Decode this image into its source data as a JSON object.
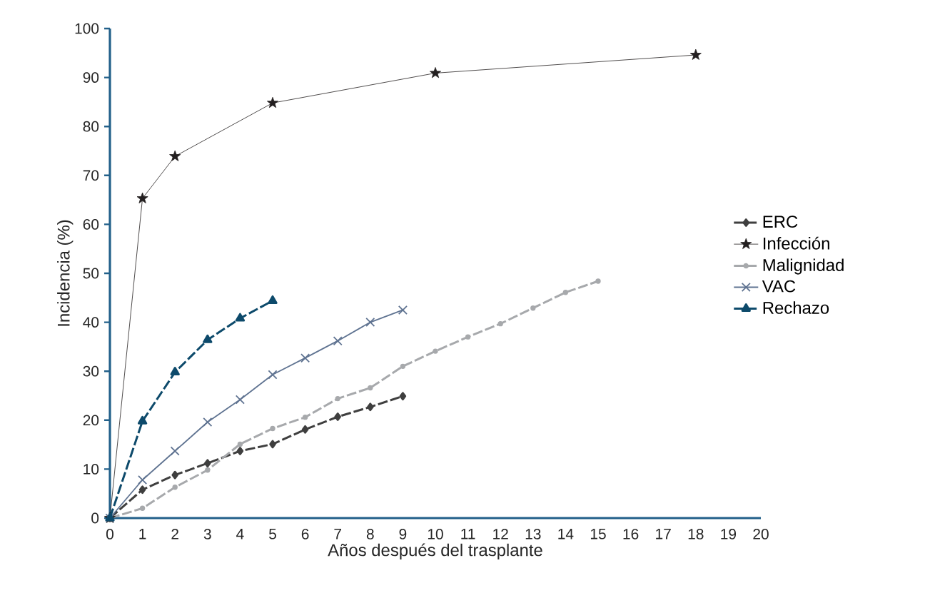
{
  "chart_data": {
    "type": "line",
    "xlabel": "Años después del trasplante",
    "ylabel": "Incidencia (%)",
    "xlim": [
      0,
      20
    ],
    "xticks": [
      0,
      1,
      2,
      3,
      4,
      5,
      6,
      7,
      8,
      9,
      10,
      11,
      12,
      13,
      14,
      15,
      16,
      17,
      18,
      19,
      20
    ],
    "ylim": [
      0,
      100
    ],
    "yticks": [
      0,
      10,
      20,
      30,
      40,
      50,
      60,
      70,
      80,
      90,
      100
    ],
    "grid": false,
    "legend": "right",
    "series": [
      {
        "name": "ERC",
        "color": "#3f3f3f",
        "marker": "diamond",
        "line_style": "dashed",
        "x": [
          0,
          1,
          2,
          3,
          4,
          5,
          6,
          7,
          8,
          9
        ],
        "values": [
          0,
          5.8,
          8.8,
          11.2,
          13.7,
          15.1,
          18.1,
          20.7,
          22.7,
          24.9
        ]
      },
      {
        "name": "Infección",
        "color": "#231f20",
        "marker": "star",
        "line_style": "solid",
        "x": [
          0,
          1,
          2,
          5,
          10,
          18
        ],
        "values": [
          0,
          65.3,
          73.9,
          84.8,
          90.9,
          94.6
        ]
      },
      {
        "name": "Malignidad",
        "color": "#a7a9ac",
        "marker": "circle",
        "line_style": "dashed",
        "x": [
          0,
          1,
          2,
          3,
          4,
          5,
          6,
          7,
          8,
          9,
          10,
          11,
          12,
          13,
          14,
          15
        ],
        "values": [
          0,
          2,
          6.3,
          9.8,
          15.1,
          18.3,
          20.6,
          24.4,
          26.6,
          31,
          34.1,
          37,
          39.7,
          42.9,
          46.1,
          48.4
        ]
      },
      {
        "name": "VAC",
        "color": "#5f7391",
        "marker": "cross",
        "line_style": "solid",
        "x": [
          0,
          1,
          2,
          3,
          4,
          5,
          6,
          7,
          8,
          9
        ],
        "values": [
          0,
          7.8,
          13.7,
          19.6,
          24.2,
          29.3,
          32.7,
          36.2,
          40,
          42.5
        ]
      },
      {
        "name": "Rechazo",
        "color": "#0d4a6b",
        "marker": "triangle",
        "line_style": "dashed",
        "x": [
          0,
          1,
          2,
          3,
          4,
          5
        ],
        "values": [
          0,
          19.8,
          29.8,
          36.4,
          40.8,
          44.4
        ]
      }
    ]
  }
}
